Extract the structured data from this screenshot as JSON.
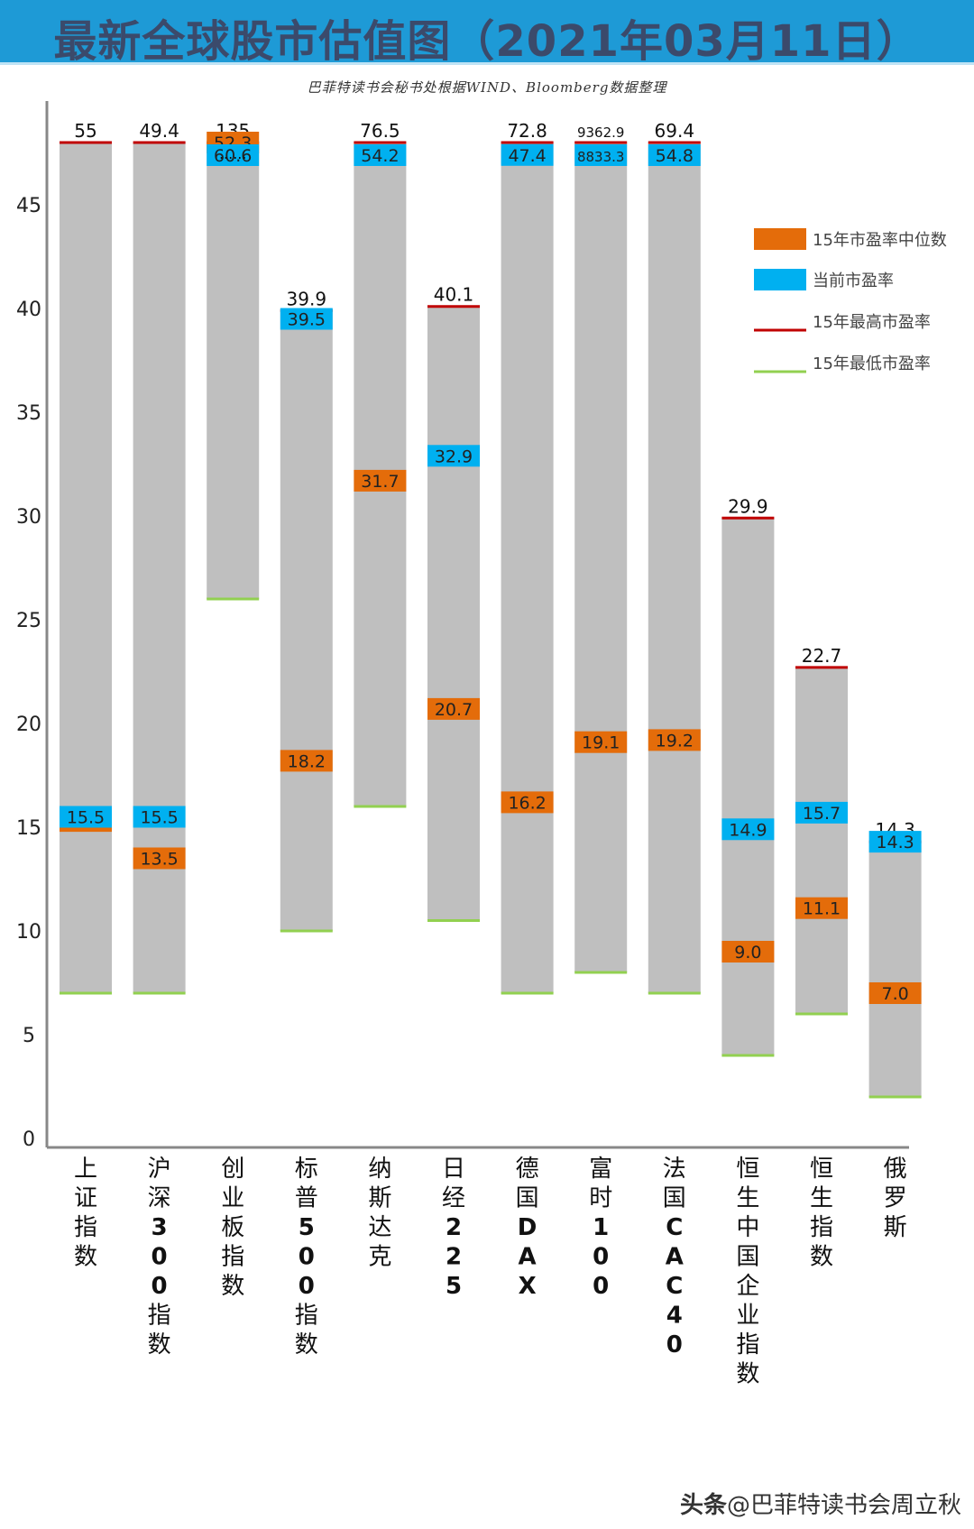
{
  "header": {
    "title": "最新全球股市估值图（2021年03月11日）",
    "source": "巴菲特读书会秘书处根据WIND、Bloomberg数据整理"
  },
  "watermark": {
    "brand": "头条",
    "handle": "@巴菲特读书会周立秋"
  },
  "colors": {
    "band": "#bfbfbf",
    "median": "#e46c0a",
    "current": "#00b0f0",
    "high_line": "#c00000",
    "low_line": "#92d050"
  },
  "chart_data": {
    "type": "floating-bar",
    "ylim": [
      0,
      50
    ],
    "yticks": [
      "0",
      "5",
      "10",
      "15",
      "20",
      "25",
      "30",
      "35",
      "40",
      "45"
    ],
    "legend": [
      {
        "key": "median",
        "label": "15年市盈率中位数"
      },
      {
        "key": "current",
        "label": "当前市盈率"
      },
      {
        "key": "high",
        "label": "15年最高市盈率"
      },
      {
        "key": "low",
        "label": "15年最低市盈率"
      }
    ],
    "markets": [
      {
        "name": "上证指数",
        "high": 55,
        "high_label": "55",
        "low": 7,
        "median": 15.3,
        "median_label": "15.3",
        "current": 15.5,
        "current_label": "15.5"
      },
      {
        "name": "沪深300指数",
        "high": 49.4,
        "high_label": "49.4",
        "low": 7,
        "median": 13.5,
        "median_label": "13.5",
        "current": 15.5,
        "current_label": "15.5"
      },
      {
        "name": "创业板指数",
        "high": 135,
        "high_label": "135",
        "low": 26,
        "median": 52.3,
        "median_label": "52.3",
        "current": 60.6,
        "current_label": "60.6"
      },
      {
        "name": "标普500指数",
        "high": 39.9,
        "high_label": "39.9",
        "low": 10,
        "median": 18.2,
        "median_label": "18.2",
        "current": 39.5,
        "current_label": "39.5"
      },
      {
        "name": "纳斯达克",
        "high": 76.5,
        "high_label": "76.5",
        "low": 16,
        "median": 31.7,
        "median_label": "31.7",
        "current": 54.2,
        "current_label": "54.2"
      },
      {
        "name": "日经225",
        "high": 40.1,
        "high_label": "40.1",
        "low": 10.5,
        "median": 20.7,
        "median_label": "20.7",
        "current": 32.9,
        "current_label": "32.9"
      },
      {
        "name": "德国DAX",
        "high": 72.8,
        "high_label": "72.8",
        "low": 7,
        "median": 16.2,
        "median_label": "16.2",
        "current": 47.4,
        "current_label": "47.4"
      },
      {
        "name": "富时100",
        "high": 9362.9,
        "high_label": "9362.9",
        "low": 8,
        "median": 19.1,
        "median_label": "19.1",
        "current": 8833.3,
        "current_label": "8833.3"
      },
      {
        "name": "法国CAC40",
        "high": 69.4,
        "high_label": "69.4",
        "low": 7,
        "median": 19.2,
        "median_label": "19.2",
        "current": 54.8,
        "current_label": "54.8"
      },
      {
        "name": "恒生中国企业指数",
        "high": 29.9,
        "high_label": "29.9",
        "low": 4,
        "median": 9.0,
        "median_label": "9.0",
        "current": 14.9,
        "current_label": "14.9"
      },
      {
        "name": "恒生指数",
        "high": 22.7,
        "high_label": "22.7",
        "low": 6,
        "median": 11.1,
        "median_label": "11.1",
        "current": 15.7,
        "current_label": "15.7"
      },
      {
        "name": "俄罗斯",
        "high": 14.3,
        "high_label": "14.3",
        "low": 2,
        "median": 7.0,
        "median_label": "7.0",
        "current": 14.3,
        "current_label": "14.3"
      }
    ],
    "break_mark": "......"
  }
}
